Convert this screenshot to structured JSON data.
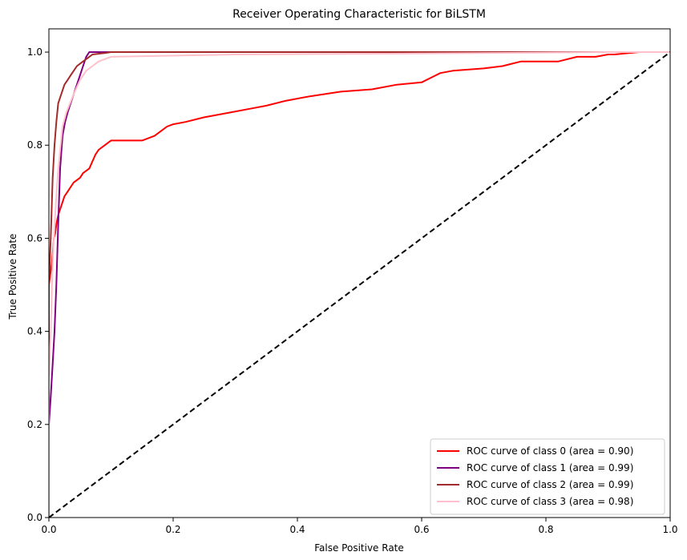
{
  "chart_data": {
    "type": "line",
    "title": "Receiver Operating Characteristic for BiLSTM",
    "xlabel": "False Positive Rate",
    "ylabel": "True Positive Rate",
    "xlim": [
      0.0,
      1.0
    ],
    "ylim": [
      0.0,
      1.05
    ],
    "xticks": [
      "0.0",
      "0.2",
      "0.4",
      "0.6",
      "0.8",
      "1.0"
    ],
    "yticks": [
      "0.0",
      "0.2",
      "0.4",
      "0.6",
      "0.8",
      "1.0"
    ],
    "grid": false,
    "legend_position": "lower-right",
    "diagonal": {
      "x": [
        0,
        1
      ],
      "y": [
        0,
        1
      ],
      "color": "#000000",
      "style": "dashed"
    },
    "series": [
      {
        "name": "ROC curve of class 0 (area = 0.90)",
        "color": "#ff0000",
        "x": [
          0.0,
          0.0,
          0.005,
          0.008,
          0.01,
          0.012,
          0.015,
          0.02,
          0.025,
          0.03,
          0.035,
          0.04,
          0.05,
          0.055,
          0.065,
          0.075,
          0.08,
          0.09,
          0.1,
          0.15,
          0.17,
          0.18,
          0.19,
          0.2,
          0.22,
          0.25,
          0.29,
          0.33,
          0.35,
          0.38,
          0.42,
          0.47,
          0.52,
          0.56,
          0.6,
          0.615,
          0.63,
          0.65,
          0.7,
          0.73,
          0.76,
          0.82,
          0.85,
          0.88,
          0.9,
          0.91,
          0.95,
          1.0
        ],
        "y": [
          0.0,
          0.5,
          0.55,
          0.6,
          0.61,
          0.63,
          0.65,
          0.67,
          0.69,
          0.7,
          0.71,
          0.72,
          0.73,
          0.74,
          0.75,
          0.78,
          0.79,
          0.8,
          0.81,
          0.81,
          0.82,
          0.83,
          0.84,
          0.845,
          0.85,
          0.86,
          0.87,
          0.88,
          0.885,
          0.895,
          0.905,
          0.915,
          0.92,
          0.93,
          0.935,
          0.945,
          0.955,
          0.96,
          0.965,
          0.97,
          0.98,
          0.98,
          0.99,
          0.99,
          0.995,
          0.995,
          1.0,
          1.0
        ]
      },
      {
        "name": "ROC curve of class 1 (area = 0.99)",
        "color": "#800080",
        "x": [
          0.0,
          0.0,
          0.003,
          0.006,
          0.009,
          0.012,
          0.015,
          0.018,
          0.022,
          0.026,
          0.03,
          0.035,
          0.04,
          0.045,
          0.05,
          0.055,
          0.06,
          0.065,
          0.07,
          0.15,
          1.0
        ],
        "y": [
          0.0,
          0.2,
          0.26,
          0.33,
          0.4,
          0.5,
          0.63,
          0.75,
          0.82,
          0.85,
          0.87,
          0.89,
          0.91,
          0.93,
          0.95,
          0.97,
          0.99,
          1.0,
          1.0,
          1.0,
          1.0
        ]
      },
      {
        "name": "ROC curve of class 2 (area = 0.99)",
        "color": "#a52a2a",
        "x": [
          0.0,
          0.0,
          0.003,
          0.006,
          0.009,
          0.012,
          0.015,
          0.02,
          0.025,
          0.03,
          0.035,
          0.04,
          0.045,
          0.05,
          0.055,
          0.06,
          0.065,
          0.07,
          0.09,
          0.1,
          0.82,
          1.0
        ],
        "y": [
          0.0,
          0.5,
          0.6,
          0.73,
          0.8,
          0.85,
          0.89,
          0.91,
          0.93,
          0.94,
          0.95,
          0.96,
          0.97,
          0.975,
          0.98,
          0.985,
          0.99,
          0.995,
          0.998,
          1.0,
          1.0,
          1.0
        ]
      },
      {
        "name": "ROC curve of class 3 (area = 0.98)",
        "color": "#ffc0cb",
        "x": [
          0.0,
          0.0,
          0.003,
          0.006,
          0.01,
          0.014,
          0.018,
          0.022,
          0.028,
          0.034,
          0.04,
          0.05,
          0.06,
          0.07,
          0.08,
          0.09,
          0.1,
          0.3,
          0.6,
          0.9,
          1.0
        ],
        "y": [
          0.0,
          0.3,
          0.4,
          0.55,
          0.65,
          0.73,
          0.79,
          0.84,
          0.87,
          0.89,
          0.91,
          0.94,
          0.96,
          0.97,
          0.98,
          0.985,
          0.99,
          0.995,
          0.997,
          1.0,
          1.0
        ]
      }
    ]
  }
}
